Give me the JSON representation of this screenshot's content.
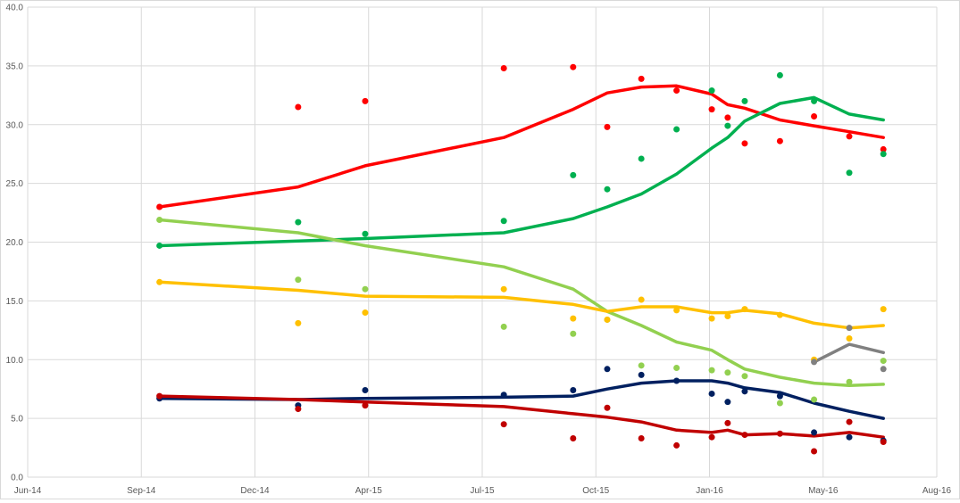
{
  "chart_data": {
    "type": "line",
    "title": "",
    "xlabel": "",
    "ylabel": "",
    "ylim": [
      0,
      40
    ],
    "y_ticks": [
      "0.0",
      "5.0",
      "10.0",
      "15.0",
      "20.0",
      "25.0",
      "30.0",
      "35.0",
      "40.0"
    ],
    "x_range": [
      "2014-06-10",
      "2016-08-18"
    ],
    "x_ticks": [
      {
        "date": "2014-06-10",
        "label": "Jun-14"
      },
      {
        "date": "2014-09-18",
        "label": "Sep-14"
      },
      {
        "date": "2014-12-27",
        "label": "Dec-14"
      },
      {
        "date": "2015-04-06",
        "label": "Apr-15"
      },
      {
        "date": "2015-07-15",
        "label": "Jul-15"
      },
      {
        "date": "2015-10-23",
        "label": "Oct-15"
      },
      {
        "date": "2016-01-31",
        "label": "Jan-16"
      },
      {
        "date": "2016-05-10",
        "label": "May-16"
      },
      {
        "date": "2016-08-18",
        "label": "Aug-16"
      }
    ],
    "grid": "both",
    "legend": "none",
    "x": [
      "2014-10-04",
      "2015-02-03",
      "2015-04-03",
      "2015-08-03",
      "2015-10-03",
      "2015-11-02",
      "2015-12-02",
      "2016-01-02",
      "2016-02-02",
      "2016-02-16",
      "2016-03-02",
      "2016-04-02",
      "2016-05-02",
      "2016-06-02",
      "2016-07-02"
    ],
    "series": [
      {
        "color": "#FF0000",
        "points": [
          23.0,
          31.5,
          32.0,
          34.8,
          34.9,
          29.8,
          33.9,
          32.9,
          31.3,
          30.6,
          28.4,
          28.6,
          30.7,
          29.0,
          27.9
        ],
        "trend": [
          23.0,
          24.7,
          26.5,
          28.9,
          31.3,
          32.7,
          33.2,
          33.3,
          32.6,
          31.7,
          31.4,
          30.4,
          29.9,
          29.4,
          28.9
        ]
      },
      {
        "color": "#00B050",
        "points": [
          19.7,
          21.7,
          20.7,
          21.8,
          25.7,
          24.5,
          27.1,
          29.6,
          32.9,
          29.9,
          32.0,
          34.2,
          32.0,
          25.9,
          27.5
        ],
        "trend": [
          19.7,
          20.1,
          20.3,
          20.8,
          22.0,
          23.0,
          24.1,
          25.8,
          28.0,
          28.9,
          30.3,
          31.8,
          32.3,
          30.9,
          30.4
        ]
      },
      {
        "color": "#92D050",
        "points": [
          21.9,
          16.8,
          16.0,
          12.8,
          12.2,
          13.4,
          9.5,
          9.3,
          9.1,
          8.9,
          8.6,
          6.3,
          6.6,
          8.1,
          9.9
        ],
        "trend": [
          21.9,
          20.8,
          19.7,
          17.9,
          16.0,
          14.1,
          12.9,
          11.5,
          10.8,
          10.0,
          9.2,
          8.5,
          8.0,
          7.8,
          7.9
        ]
      },
      {
        "color": "#FFC000",
        "points": [
          16.6,
          13.1,
          14.0,
          16.0,
          13.5,
          13.4,
          15.1,
          14.2,
          13.5,
          13.7,
          14.3,
          13.8,
          10.0,
          11.8,
          14.3
        ],
        "trend": [
          16.6,
          15.9,
          15.4,
          15.3,
          14.7,
          14.1,
          14.5,
          14.5,
          14.0,
          14.0,
          14.2,
          13.9,
          13.1,
          12.7,
          12.9
        ]
      },
      {
        "color": "#002060",
        "points": [
          6.7,
          6.1,
          7.4,
          7.0,
          7.4,
          9.2,
          8.7,
          8.2,
          7.1,
          6.4,
          7.3,
          6.9,
          3.8,
          3.4,
          3.1
        ],
        "trend": [
          6.7,
          6.6,
          6.7,
          6.8,
          6.9,
          7.5,
          8.0,
          8.2,
          8.2,
          8.0,
          7.6,
          7.2,
          6.3,
          5.6,
          5.0
        ]
      },
      {
        "color": "#C00000",
        "points": [
          6.9,
          5.8,
          6.1,
          4.5,
          3.3,
          5.9,
          3.3,
          2.7,
          3.4,
          4.6,
          3.6,
          3.7,
          2.2,
          4.7,
          3.0
        ],
        "trend": [
          6.9,
          6.6,
          6.4,
          6.0,
          5.4,
          5.1,
          4.7,
          4.0,
          3.8,
          4.0,
          3.6,
          3.7,
          3.5,
          3.8,
          3.4
        ]
      },
      {
        "color": "#808080",
        "points": [
          null,
          null,
          null,
          null,
          null,
          null,
          null,
          null,
          null,
          null,
          null,
          null,
          9.8,
          12.7,
          9.2
        ],
        "trend": [
          null,
          null,
          null,
          null,
          null,
          null,
          null,
          null,
          null,
          null,
          null,
          null,
          9.8,
          11.3,
          10.6
        ]
      }
    ]
  }
}
